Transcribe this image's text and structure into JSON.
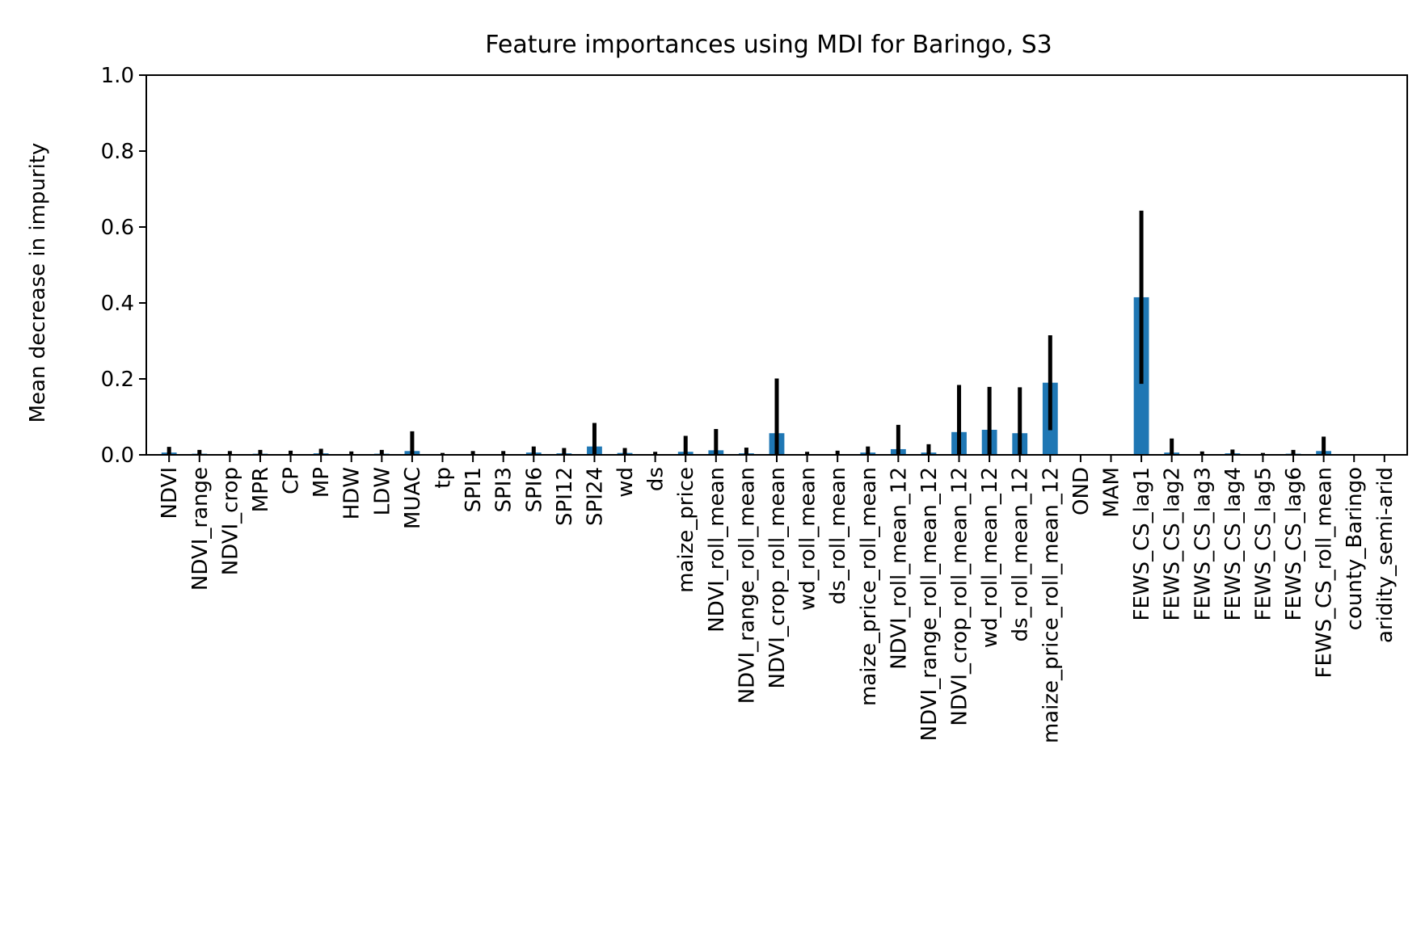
{
  "chart_data": {
    "type": "bar",
    "title": "Feature importances using MDI for Baringo, S3",
    "xlabel": "",
    "ylabel": "Mean decrease in impurity",
    "ylim": [
      0,
      1.0
    ],
    "yticks": [
      "0.0",
      "0.2",
      "0.4",
      "0.6",
      "0.8",
      "1.0"
    ],
    "grid": false,
    "bar_color": "#1f77b4",
    "error_color": "#000000",
    "categories": [
      "NDVI",
      "NDVI_range",
      "NDVI_crop",
      "MPR",
      "CP",
      "MP",
      "HDW",
      "LDW",
      "MUAC",
      "tp",
      "SPI1",
      "SPI3",
      "SPI6",
      "SPI12",
      "SPI24",
      "wd",
      "ds",
      "maize_price",
      "NDVI_roll_mean",
      "NDVI_range_roll_mean",
      "NDVI_crop_roll_mean",
      "wd_roll_mean",
      "ds_roll_mean",
      "maize_price_roll_mean",
      "NDVI_roll_mean_12",
      "NDVI_range_roll_mean_12",
      "NDVI_crop_roll_mean_12",
      "wd_roll_mean_12",
      "ds_roll_mean_12",
      "maize_price_roll_mean_12",
      "OND",
      "MAM",
      "FEWS_CS_lag1",
      "FEWS_CS_lag2",
      "FEWS_CS_lag3",
      "FEWS_CS_lag4",
      "FEWS_CS_lag5",
      "FEWS_CS_lag6",
      "FEWS_CS_roll_mean",
      "county_Baringo",
      "aridity_semi-arid"
    ],
    "values": [
      0.006,
      0.003,
      0.002,
      0.003,
      0.002,
      0.004,
      0.002,
      0.003,
      0.01,
      0.001,
      0.002,
      0.002,
      0.006,
      0.004,
      0.022,
      0.005,
      0.002,
      0.008,
      0.012,
      0.004,
      0.057,
      0.002,
      0.002,
      0.006,
      0.015,
      0.006,
      0.06,
      0.066,
      0.057,
      0.19,
      0.0,
      0.0,
      0.415,
      0.006,
      0.002,
      0.004,
      0.001,
      0.003,
      0.01,
      0.0,
      0.0
    ],
    "errors": [
      0.015,
      0.01,
      0.008,
      0.01,
      0.009,
      0.012,
      0.007,
      0.01,
      0.052,
      0.004,
      0.008,
      0.008,
      0.016,
      0.014,
      0.062,
      0.013,
      0.006,
      0.042,
      0.056,
      0.015,
      0.144,
      0.006,
      0.009,
      0.016,
      0.064,
      0.022,
      0.124,
      0.113,
      0.121,
      0.125,
      0.002,
      0.0,
      0.228,
      0.037,
      0.007,
      0.01,
      0.004,
      0.01,
      0.038,
      0.0,
      0.0
    ]
  }
}
